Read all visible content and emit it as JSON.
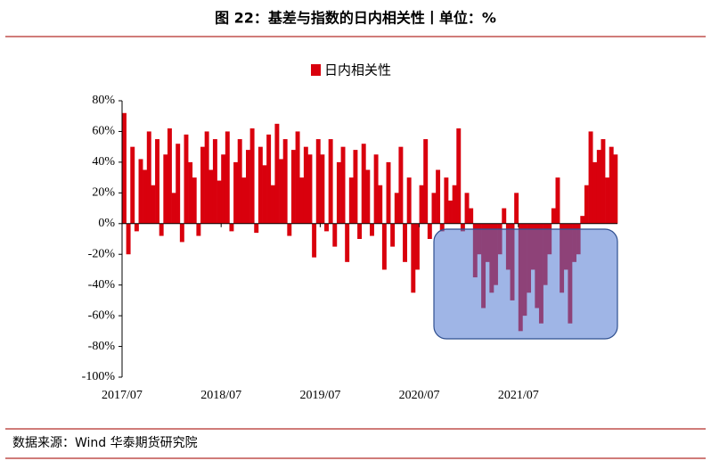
{
  "chart_data": {
    "type": "bar",
    "title": "图 22：基差与指数的日内相关性丨单位：%",
    "source": "数据来源：Wind  华泰期货研究院",
    "series": [
      {
        "name": "日内相关性",
        "color": "#d9000d",
        "values": [
          72,
          -20,
          50,
          -5,
          42,
          35,
          60,
          25,
          55,
          -8,
          45,
          62,
          20,
          52,
          -12,
          58,
          40,
          30,
          -8,
          50,
          60,
          35,
          55,
          28,
          45,
          60,
          -5,
          40,
          55,
          30,
          48,
          62,
          -6,
          50,
          38,
          58,
          25,
          65,
          42,
          55,
          -8,
          48,
          60,
          30,
          50,
          45,
          -22,
          55,
          45,
          -5,
          55,
          -15,
          40,
          50,
          -25,
          30,
          48,
          -10,
          52,
          35,
          -8,
          45,
          25,
          -30,
          40,
          -15,
          20,
          50,
          -25,
          30,
          -45,
          -30,
          25,
          55,
          -10,
          20,
          35,
          -5,
          30,
          15,
          25,
          62,
          -5,
          20,
          10,
          -35,
          -20,
          -55,
          -25,
          -45,
          -40,
          -20,
          10,
          -30,
          -50,
          20,
          -70,
          -60,
          -45,
          -30,
          -55,
          -65,
          -40,
          -20,
          10,
          30,
          -45,
          -30,
          -65,
          -25,
          -20,
          5,
          25,
          60,
          40,
          48,
          55,
          30,
          50,
          45
        ]
      }
    ],
    "categories": [
      "2017/07",
      null,
      null,
      null,
      null,
      null,
      null,
      null,
      null,
      null,
      null,
      null,
      null,
      null,
      null,
      null,
      null,
      null,
      null,
      null,
      null,
      null,
      null,
      null,
      "2018/07",
      null,
      null,
      null,
      null,
      null,
      null,
      null,
      null,
      null,
      null,
      null,
      null,
      null,
      null,
      null,
      null,
      null,
      null,
      null,
      null,
      null,
      null,
      null,
      "2019/07",
      null,
      null,
      null,
      null,
      null,
      null,
      null,
      null,
      null,
      null,
      null,
      null,
      null,
      null,
      null,
      null,
      null,
      null,
      null,
      null,
      null,
      null,
      null,
      "2020/07",
      null,
      null,
      null,
      null,
      null,
      null,
      null,
      null,
      null,
      null,
      null,
      null,
      null,
      null,
      null,
      null,
      null,
      null,
      null,
      null,
      null,
      null,
      null,
      "2021/07",
      null,
      null,
      null,
      null,
      null,
      null,
      null,
      null,
      null,
      null,
      null,
      null,
      null,
      null,
      null,
      null,
      null,
      null,
      null,
      null,
      null,
      null,
      null
    ],
    "ylim": [
      -100,
      80
    ],
    "yticks": [
      {
        "value": -100,
        "label": "-100%"
      },
      {
        "value": -80,
        "label": "-80%"
      },
      {
        "value": -60,
        "label": "-60%"
      },
      {
        "value": -40,
        "label": "-40%"
      },
      {
        "value": -20,
        "label": "-20%"
      },
      {
        "value": 0,
        "label": "0%"
      },
      {
        "value": 20,
        "label": "20%"
      },
      {
        "value": 40,
        "label": "40%"
      },
      {
        "value": 60,
        "label": "60%"
      },
      {
        "value": 80,
        "label": "80%"
      }
    ]
  }
}
